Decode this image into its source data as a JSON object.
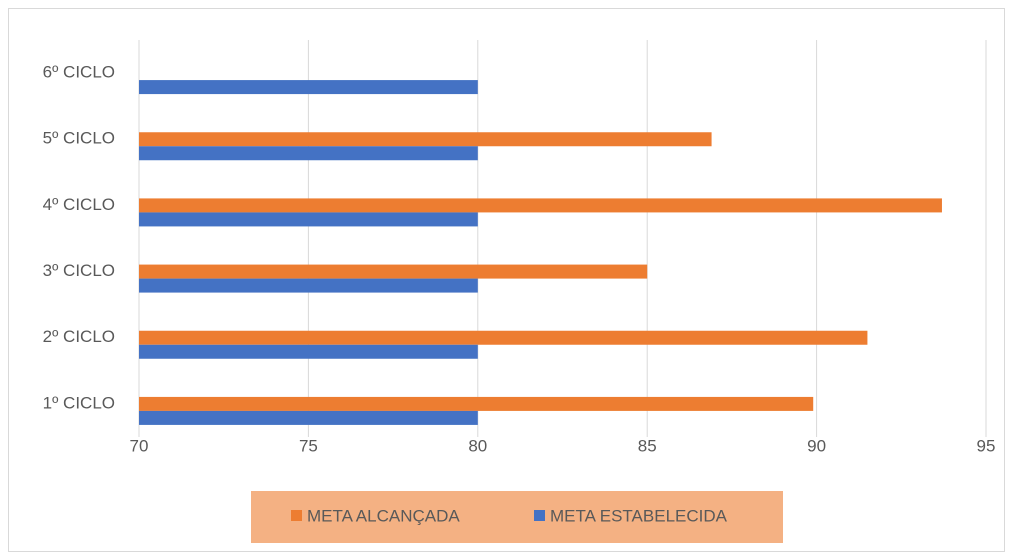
{
  "chart_data": {
    "type": "barh",
    "categories": [
      "1º CICLO",
      "2º CICLO",
      "3º CICLO",
      "4º CICLO",
      "5º CICLO",
      "6º CICLO"
    ],
    "series": [
      {
        "name": "META ALCANÇADA",
        "color": "#ed7d31",
        "values": [
          89.9,
          91.5,
          85.0,
          93.7,
          86.9,
          null
        ]
      },
      {
        "name": "META ESTABELECIDA",
        "color": "#4472c4",
        "values": [
          80,
          80,
          80,
          80,
          80,
          80
        ]
      }
    ],
    "xlim": [
      70,
      95
    ],
    "xticks": [
      70,
      75,
      80,
      85,
      90,
      95
    ],
    "grid": true,
    "legend": "bottom"
  }
}
